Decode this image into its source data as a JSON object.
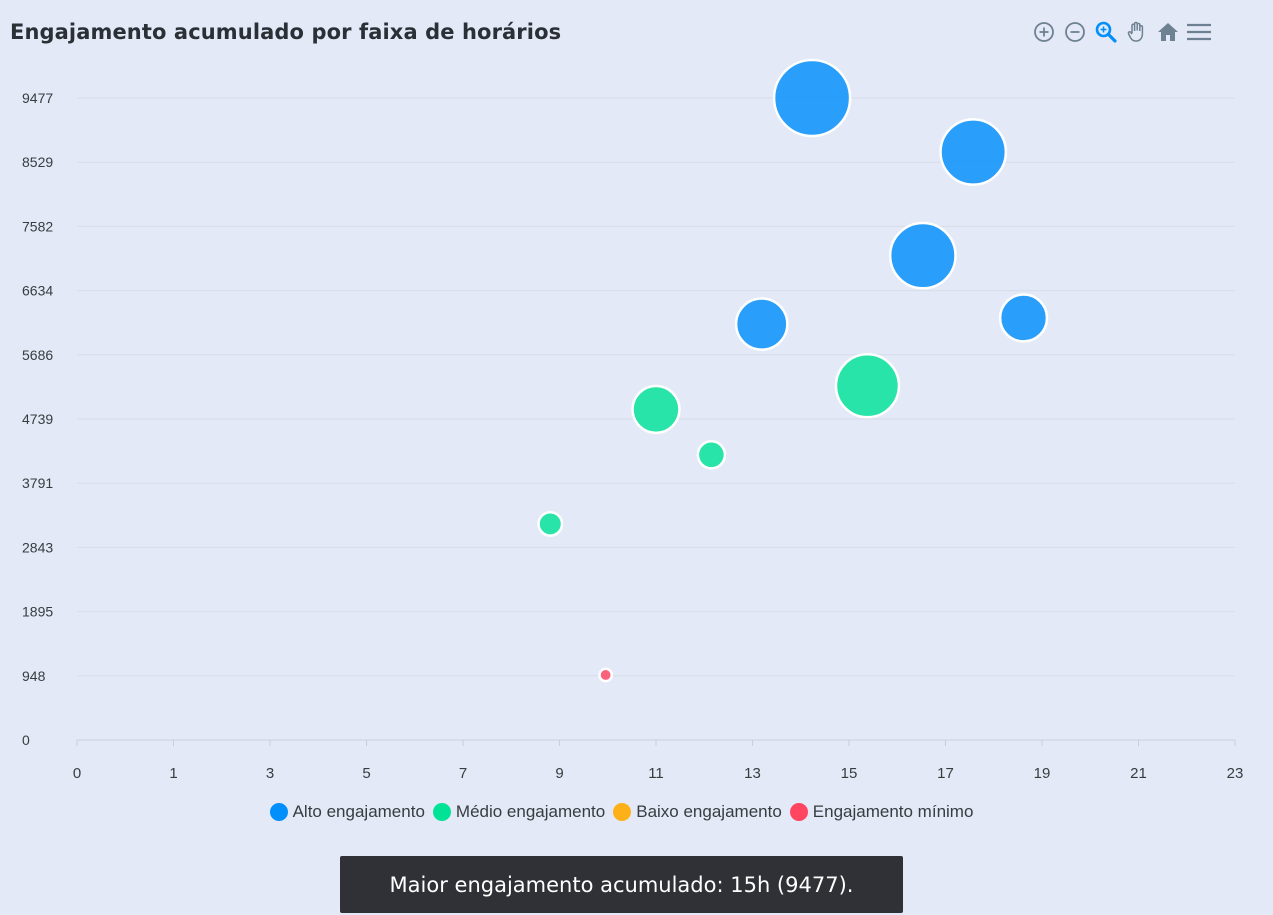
{
  "title": "Engajamento acumulado por faixa de horários",
  "toolbar": [
    {
      "name": "zoom-in-icon"
    },
    {
      "name": "zoom-out-icon"
    },
    {
      "name": "selection-zoom-icon"
    },
    {
      "name": "pan-hand-icon"
    },
    {
      "name": "reset-home-icon"
    },
    {
      "name": "menu-icon"
    }
  ],
  "chart_data": {
    "type": "scatter",
    "subtype": "bubble",
    "title": "Engajamento acumulado por faixa de horários",
    "xlim": [
      0,
      23
    ],
    "x_ticks": [
      "0",
      "1",
      "3",
      "5",
      "7",
      "9",
      "11",
      "13",
      "15",
      "17",
      "19",
      "21",
      "23"
    ],
    "ylim": [
      0,
      9477
    ],
    "y_ticks": [
      "0",
      "948",
      "1895",
      "2843",
      "3791",
      "4739",
      "5686",
      "6634",
      "7582",
      "8529",
      "9477"
    ],
    "grid": true,
    "legend_position": "bottom",
    "series": [
      {
        "name": "Alto engajamento",
        "color": "#008ffb",
        "points": [
          {
            "x": 14.6,
            "y": 9477,
            "size": 9477
          },
          {
            "x": 17.8,
            "y": 8680,
            "size": 7000
          },
          {
            "x": 16.8,
            "y": 7150,
            "size": 7000
          },
          {
            "x": 13.6,
            "y": 6140,
            "size": 4300
          },
          {
            "x": 18.8,
            "y": 6230,
            "size": 3600
          }
        ]
      },
      {
        "name": "Médio engajamento",
        "color": "#00e396",
        "points": [
          {
            "x": 15.7,
            "y": 5230,
            "size": 6500
          },
          {
            "x": 11.5,
            "y": 4880,
            "size": 3600
          },
          {
            "x": 12.6,
            "y": 4210,
            "size": 1200
          },
          {
            "x": 9.4,
            "y": 3190,
            "size": 900
          }
        ]
      },
      {
        "name": "Baixo engajamento",
        "color": "#feb019",
        "points": []
      },
      {
        "name": "Engajamento mínimo",
        "color": "#ff4560",
        "points": [
          {
            "x": 10.5,
            "y": 960,
            "size": 250
          }
        ]
      }
    ]
  },
  "tooltip": "Maior engajamento acumulado: 15h (9477)."
}
